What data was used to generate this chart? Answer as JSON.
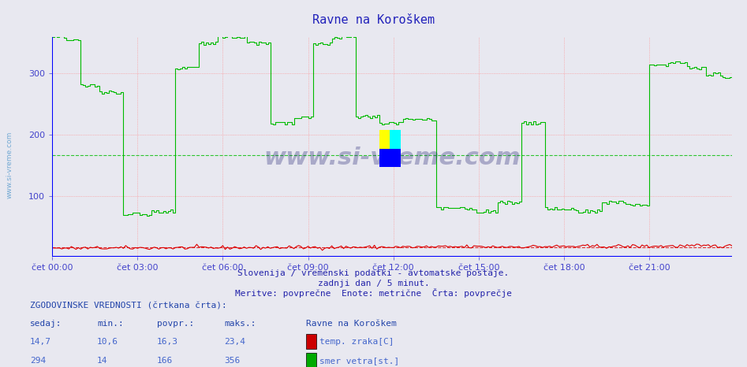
{
  "title": "Ravne na Koroškem",
  "background_color": "#e8e8f0",
  "plot_bg_color": "#e8e8f0",
  "xlabel_color": "#4444cc",
  "title_color": "#2222bb",
  "grid_color": "#ff8888",
  "ylim": [
    0,
    360
  ],
  "yticks": [
    100,
    200,
    300
  ],
  "xtick_labels": [
    "čet 00:00",
    "čet 03:00",
    "čet 06:00",
    "čet 09:00",
    "čet 12:00",
    "čet 15:00",
    "čet 18:00",
    "čet 21:00"
  ],
  "n_points": 288,
  "subtitle1": "Slovenija / vremenski podatki - avtomatske postaje.",
  "subtitle2": "zadnji dan / 5 minut.",
  "subtitle3": "Meritve: povprečne  Enote: metrične  Črta: povprečje",
  "table_header": "ZGODOVINSKE VREDNOSTI (črtkana črta):",
  "col_headers": [
    "sedaj:",
    "min.:",
    "povpr.:",
    "maks.:"
  ],
  "row1": [
    "14,7",
    "10,6",
    "16,3",
    "23,4"
  ],
  "row2": [
    "294",
    "14",
    "166",
    "356"
  ],
  "legend_station": "Ravne na Koroškem",
  "legend_items": [
    "temp. zraka[C]",
    "smer vetra[st.]"
  ],
  "legend_colors": [
    "#cc0000",
    "#00aa00"
  ],
  "watermark": "www.si-vreme.com",
  "temp_avg": 16.3,
  "wind_avg": 166,
  "temp_color": "#dd0000",
  "wind_color": "#00bb00"
}
